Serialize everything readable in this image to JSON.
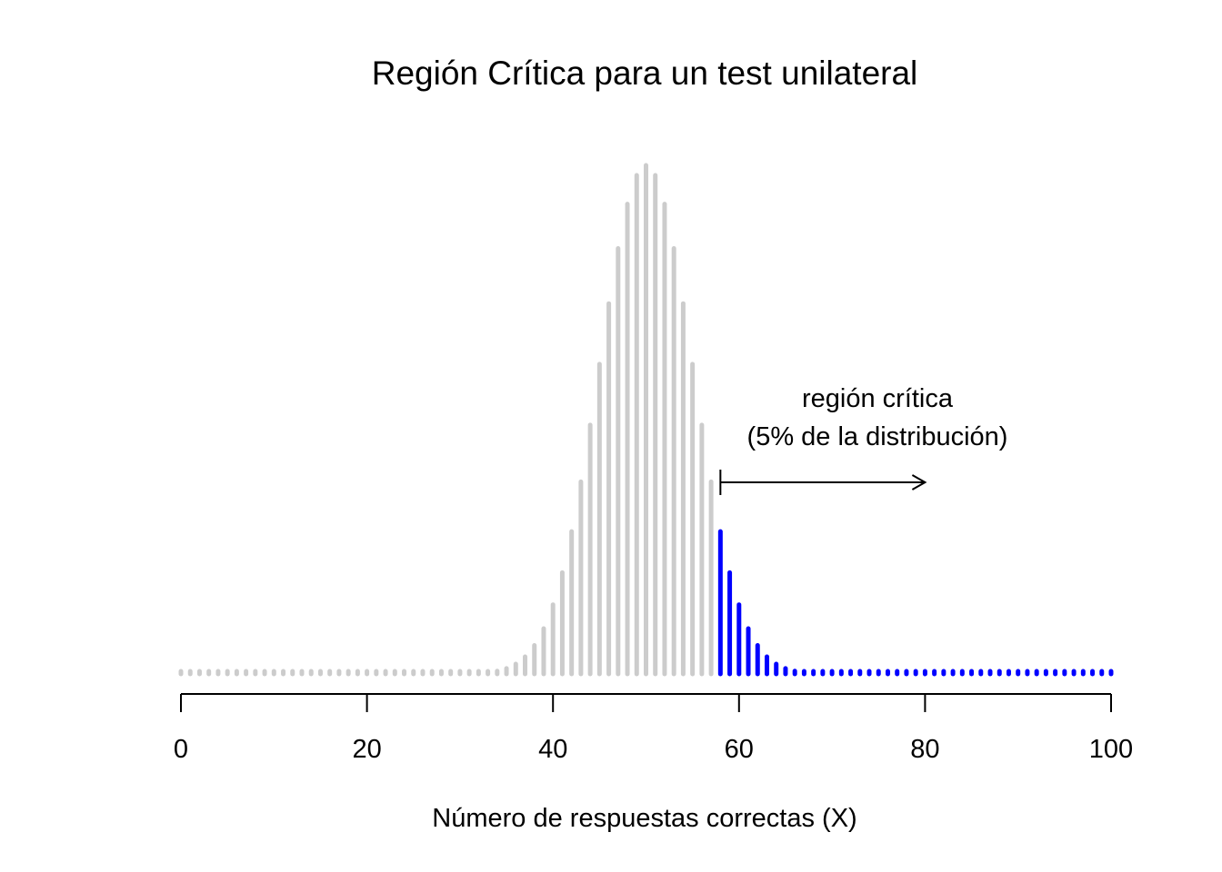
{
  "chart_data": {
    "type": "bar",
    "title": "Región Crítica para un test unilateral",
    "xlabel": "Número de respuestas correctas (X)",
    "ylabel": "",
    "distribution": {
      "n": 100,
      "p": 0.5
    },
    "x_range": [
      0,
      100
    ],
    "xlim": [
      0,
      100
    ],
    "x_ticks": [
      0,
      20,
      40,
      60,
      80,
      100
    ],
    "critical_value": 58,
    "annotation": {
      "line1": "región crítica",
      "line2": "(5% de la distribución)",
      "arrow_from": 58,
      "arrow_to": 80
    },
    "colors": {
      "body": "#cccccc",
      "critical": "#0000ff",
      "text": "#000000",
      "axis": "#000000"
    },
    "y_axis_shown": false,
    "grid": false
  }
}
